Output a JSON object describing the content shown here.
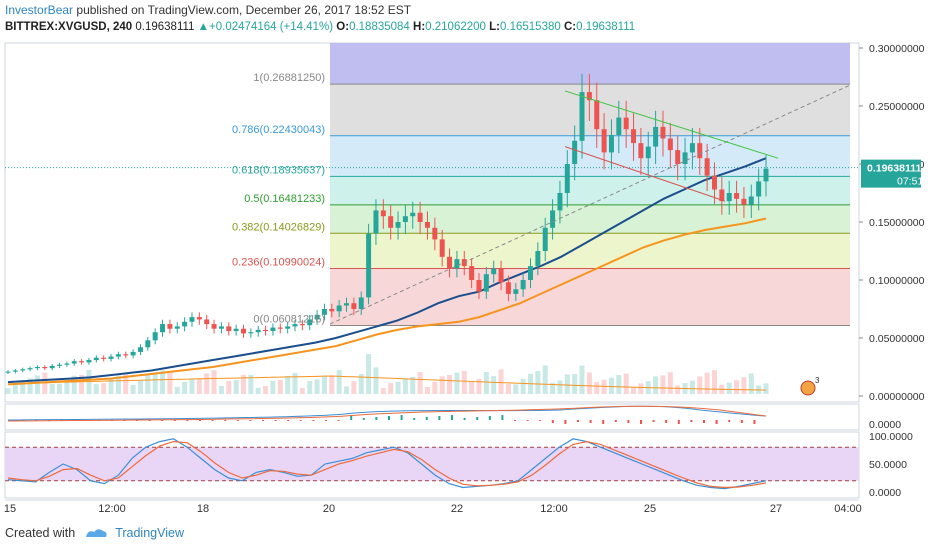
{
  "header": {
    "author": "InvestorBear",
    "published": "published on TradingView.com, December 26, 2017 18:52 EST",
    "symbol": "BITTREX:XVGUSD, 240",
    "last": "0.19638111",
    "change_arrow": "▲",
    "change": "+0.02474164 (+14.41%)",
    "o_label": "O:",
    "o": "0.18835084",
    "h_label": "H:",
    "h": "0.21062200",
    "l_label": "L:",
    "l": "0.16515380",
    "c_label": "C:",
    "c": "0.19638111"
  },
  "footer": {
    "created_with": "Created with",
    "brand": "TradingView"
  },
  "price_badge": {
    "value": "0.19638111",
    "timer": "07:51"
  },
  "colors": {
    "up": "#26a69a",
    "down": "#ef5350",
    "ma_blue": "#1a4e8c",
    "ma_orange": "#f7941d",
    "stoch_k": "#3b8fd6",
    "stoch_d": "#ef6a3a",
    "fib_line": "#999999",
    "trend_green": "#3cc43c",
    "trend_red": "#d9534f"
  },
  "chart_data": {
    "type": "candlestick",
    "price_axis": {
      "min": 0.0,
      "max": 0.3,
      "ticks": [
        0.3,
        0.25,
        0.2,
        0.15,
        0.1,
        0.05,
        0.0
      ],
      "tick_labels": [
        "0.30000000",
        "0.25000000",
        "0.20000000",
        "0.15000000",
        "0.10000000",
        "0.05000000",
        "0.00000000"
      ]
    },
    "x_ticks": [
      "15",
      "12:00",
      "18",
      "20",
      "22",
      "12:00",
      "25",
      "27",
      "04:00"
    ],
    "fib_levels": [
      {
        "ratio_label": "1",
        "value_label": "(0.26881250)",
        "value": 0.2688125,
        "color": "#888888"
      },
      {
        "ratio_label": "0.786",
        "value_label": "(0.22430043)",
        "value": 0.22430043,
        "color": "#3a9ad9"
      },
      {
        "ratio_label": "0.618",
        "value_label": "(0.18935637)",
        "value": 0.18935637,
        "color": "#26a69a"
      },
      {
        "ratio_label": "0.5",
        "value_label": "(0.16481233)",
        "value": 0.16481233,
        "color": "#2e9d2e"
      },
      {
        "ratio_label": "0.382",
        "value_label": "(0.14026829)",
        "value": 0.14026829,
        "color": "#8a9a1e"
      },
      {
        "ratio_label": "0.236",
        "value_label": "(0.10990024)",
        "value": 0.10990024,
        "color": "#d9534f"
      },
      {
        "ratio_label": "0",
        "value_label": "(0.06081216)",
        "value": 0.06081216,
        "color": "#888888"
      }
    ],
    "candles_close": [
      0.021,
      0.022,
      0.023,
      0.024,
      0.025,
      0.024,
      0.026,
      0.027,
      0.028,
      0.03,
      0.029,
      0.031,
      0.033,
      0.032,
      0.034,
      0.036,
      0.035,
      0.038,
      0.042,
      0.048,
      0.055,
      0.062,
      0.058,
      0.06,
      0.064,
      0.068,
      0.066,
      0.062,
      0.058,
      0.06,
      0.056,
      0.058,
      0.054,
      0.055,
      0.057,
      0.056,
      0.059,
      0.058,
      0.06,
      0.062,
      0.061,
      0.066,
      0.07,
      0.075,
      0.073,
      0.078,
      0.08,
      0.075,
      0.085,
      0.14,
      0.16,
      0.155,
      0.145,
      0.15,
      0.155,
      0.158,
      0.15,
      0.145,
      0.135,
      0.12,
      0.11,
      0.118,
      0.112,
      0.1,
      0.09,
      0.105,
      0.11,
      0.098,
      0.088,
      0.092,
      0.1,
      0.112,
      0.125,
      0.145,
      0.16,
      0.175,
      0.2,
      0.22,
      0.262,
      0.255,
      0.23,
      0.21,
      0.225,
      0.24,
      0.23,
      0.218,
      0.205,
      0.215,
      0.232,
      0.222,
      0.212,
      0.2,
      0.21,
      0.218,
      0.205,
      0.19,
      0.178,
      0.168,
      0.175,
      0.17,
      0.165,
      0.172,
      0.185,
      0.196
    ],
    "ma_blue": [
      0.012,
      0.013,
      0.014,
      0.015,
      0.016,
      0.018,
      0.02,
      0.022,
      0.025,
      0.028,
      0.031,
      0.034,
      0.037,
      0.04,
      0.043,
      0.046,
      0.05,
      0.055,
      0.06,
      0.065,
      0.072,
      0.08,
      0.086,
      0.09,
      0.098,
      0.105,
      0.112,
      0.12,
      0.13,
      0.14,
      0.15,
      0.16,
      0.17,
      0.178,
      0.186,
      0.192,
      0.198,
      0.205
    ],
    "ma_orange": [
      0.01,
      0.011,
      0.012,
      0.013,
      0.014,
      0.015,
      0.017,
      0.019,
      0.021,
      0.023,
      0.025,
      0.028,
      0.031,
      0.034,
      0.037,
      0.04,
      0.043,
      0.048,
      0.053,
      0.057,
      0.06,
      0.062,
      0.064,
      0.068,
      0.074,
      0.08,
      0.088,
      0.096,
      0.104,
      0.112,
      0.12,
      0.128,
      0.134,
      0.139,
      0.143,
      0.146,
      0.149,
      0.153
    ],
    "macd_axis": {
      "tick_labels": [
        "0.0000"
      ]
    },
    "stoch_axis": {
      "min": 0,
      "max": 100,
      "tick_labels": [
        "100.0000",
        "50.0000",
        "0.0000"
      ],
      "bands": [
        80,
        20
      ]
    },
    "stoch_k": [
      22,
      20,
      18,
      35,
      50,
      40,
      20,
      15,
      30,
      60,
      80,
      90,
      95,
      80,
      60,
      40,
      25,
      20,
      35,
      40,
      35,
      28,
      30,
      50,
      55,
      60,
      70,
      75,
      80,
      70,
      50,
      30,
      15,
      8,
      10,
      12,
      15,
      20,
      40,
      60,
      80,
      95,
      90,
      80,
      70,
      60,
      50,
      40,
      30,
      20,
      12,
      8,
      6,
      10,
      15,
      20
    ],
    "stoch_d": [
      25,
      22,
      20,
      28,
      40,
      42,
      30,
      20,
      25,
      45,
      65,
      82,
      90,
      88,
      72,
      52,
      35,
      25,
      30,
      38,
      37,
      32,
      30,
      40,
      50,
      56,
      64,
      70,
      76,
      72,
      58,
      40,
      25,
      14,
      11,
      12,
      14,
      18,
      30,
      48,
      68,
      85,
      90,
      85,
      75,
      65,
      55,
      45,
      35,
      25,
      16,
      10,
      8,
      9,
      12,
      16
    ]
  }
}
